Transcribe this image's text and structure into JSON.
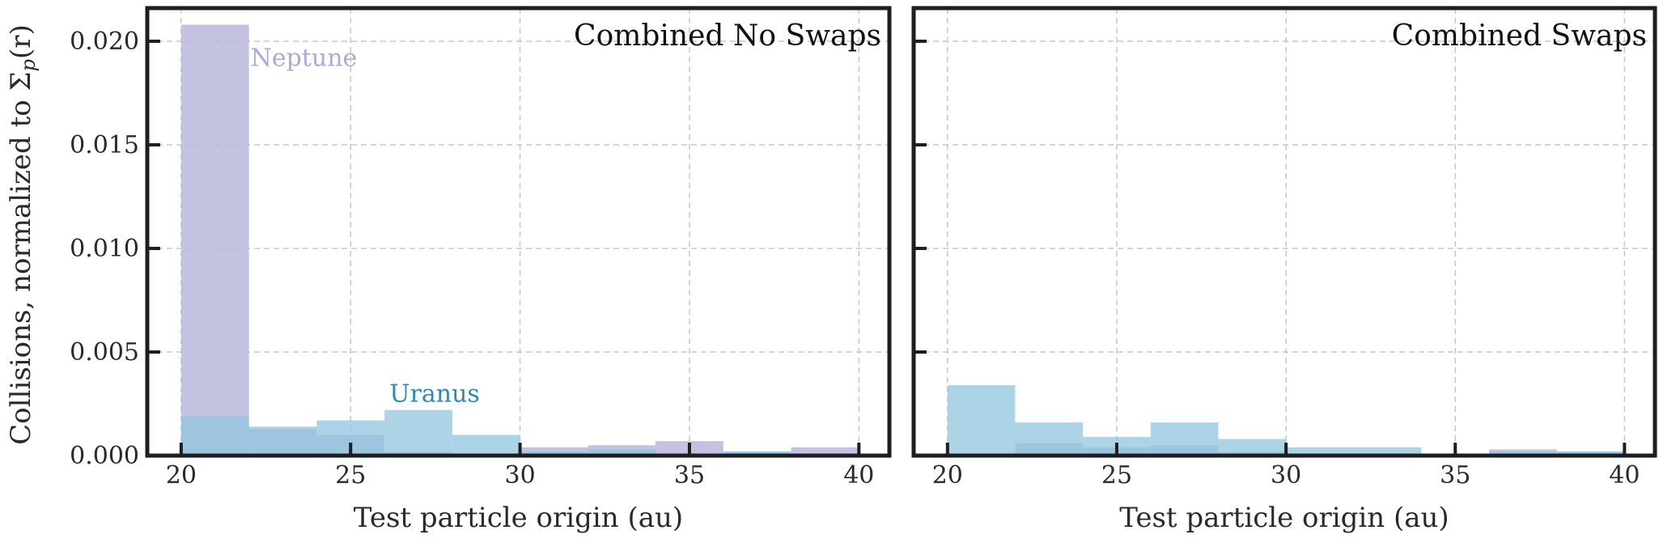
{
  "ylabel_main": "Collisions, normalized to Σ",
  "ylabel_sub": "p",
  "ylabel_tail": "(r)",
  "chart_data": [
    {
      "type": "histogram",
      "title": "Combined No Swaps",
      "xlabel": "Test particle origin (au)",
      "xlim": [
        19,
        40.9
      ],
      "ylim": [
        0,
        0.0216
      ],
      "xticks": [
        20,
        25,
        30,
        35,
        40
      ],
      "yticks": [
        "0.000",
        "0.005",
        "0.010",
        "0.015",
        "0.020"
      ],
      "grid": true,
      "bin_edges": [
        20,
        22,
        24,
        26,
        28,
        30,
        32,
        34,
        36,
        38,
        40
      ],
      "series": [
        {
          "name": "Neptune",
          "color": "#b8b8dc",
          "opacity": 0.85,
          "values": [
            0.0208,
            0.0013,
            0.001,
            0.0002,
            0.0001,
            0.0004,
            0.0005,
            0.0007,
            0.0002,
            0.0004
          ]
        },
        {
          "name": "Uranus",
          "color": "#92c5de",
          "opacity": 0.75,
          "values": [
            0.0019,
            0.0014,
            0.0017,
            0.0022,
            0.001,
            0.0002,
            0.0003,
            0.0001,
            0.0002,
            0.0001
          ]
        }
      ],
      "annotations": [
        {
          "text": "Neptune",
          "x": 22.0,
          "y": 0.0188,
          "color": "#aaaad6"
        },
        {
          "text": "Uranus",
          "x": 26.1,
          "y": 0.0026,
          "color": "#2a8cb4"
        }
      ]
    },
    {
      "type": "histogram",
      "title": "Combined Swaps",
      "xlabel": "Test particle origin (au)",
      "xlim": [
        19,
        40.9
      ],
      "ylim": [
        0,
        0.0216
      ],
      "xticks": [
        20,
        25,
        30,
        35,
        40
      ],
      "yticks": [
        "",
        "",
        "",
        "",
        ""
      ],
      "grid": true,
      "bin_edges": [
        20,
        22,
        24,
        26,
        28,
        30,
        32,
        34,
        36,
        38,
        40
      ],
      "series": [
        {
          "name": "Neptune",
          "color": "#b8b8dc",
          "opacity": 0.85,
          "values": [
            0.0001,
            0.0006,
            0.0004,
            0.0005,
            0.0002,
            0.0001,
            0.0001,
            0.0001,
            0.0003,
            0.0002
          ]
        },
        {
          "name": "Uranus",
          "color": "#92c5de",
          "opacity": 0.75,
          "values": [
            0.0034,
            0.0016,
            0.0009,
            0.0016,
            0.0008,
            0.0004,
            0.0004,
            0.0001,
            0.0002,
            0.0002
          ]
        }
      ],
      "annotations": []
    }
  ]
}
